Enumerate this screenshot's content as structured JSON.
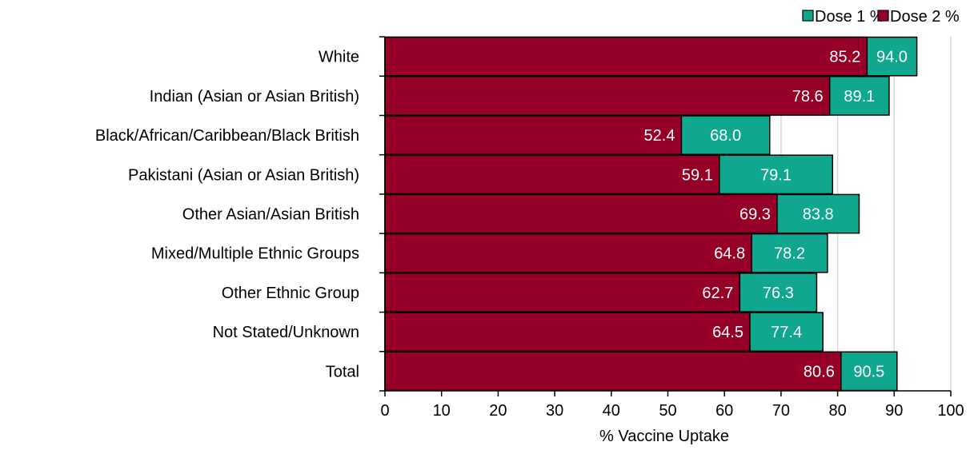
{
  "chart_data": {
    "type": "bar",
    "orientation": "horizontal",
    "layout": "overlapping",
    "categories": [
      "White",
      "Indian (Asian or Asian British)",
      "Black/African/Caribbean/Black British",
      "Pakistani (Asian or Asian British)",
      "Other Asian/Asian British",
      "Mixed/Multiple Ethnic Groups",
      "Other Ethnic Group",
      "Not Stated/Unknown",
      "Total"
    ],
    "series": [
      {
        "name": "Dose 1 %",
        "color": "#0fa88e",
        "values": [
          94.0,
          89.1,
          68.0,
          79.1,
          83.8,
          78.2,
          76.3,
          77.4,
          90.5
        ],
        "labels": [
          "94.0",
          "89.1",
          "68.0",
          "79.1",
          "83.8",
          "78.2",
          "76.3",
          "77.4",
          "90.5"
        ]
      },
      {
        "name": "Dose 2 %",
        "color": "#960028",
        "values": [
          85.2,
          78.6,
          52.4,
          59.1,
          69.3,
          64.8,
          62.7,
          64.5,
          80.6
        ],
        "labels": [
          "85.2",
          "78.6",
          "52.4",
          "59.1",
          "69.3",
          "64.8",
          "62.7",
          "64.5",
          "80.6"
        ]
      }
    ],
    "xlabel": "% Vaccine Uptake",
    "xlim": [
      0,
      100
    ],
    "xticks": [
      "0",
      "10",
      "20",
      "30",
      "40",
      "50",
      "60",
      "70",
      "80",
      "90",
      "100"
    ],
    "grid": "vertical",
    "legend": "top-right"
  }
}
